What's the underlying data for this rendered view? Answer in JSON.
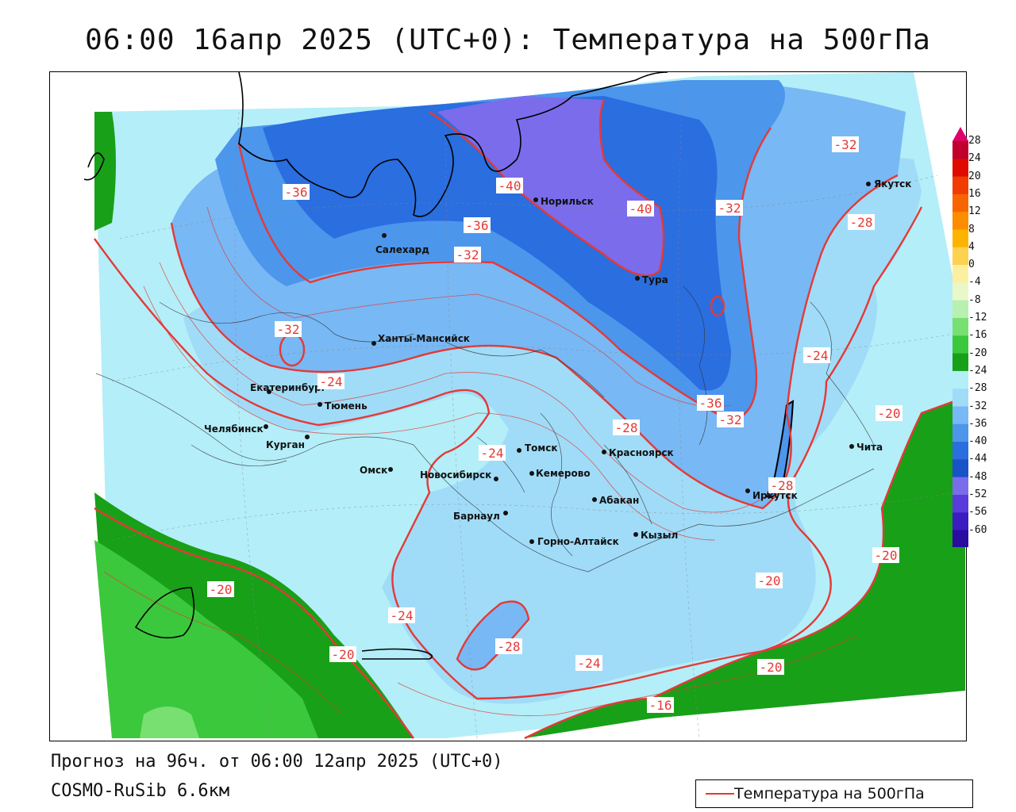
{
  "title": "06:00 16апр 2025 (UTC+0): Температура на 500гПа",
  "footer": {
    "forecast": "Прогноз на 96ч. от 06:00 12апр 2025 (UTC+0)",
    "model": "COSMO-RuSib 6.6км"
  },
  "legend": {
    "label": "Температура на 500гПа",
    "line_color": "#e53935"
  },
  "colorbar": {
    "labels": [
      "28",
      "24",
      "20",
      "16",
      "12",
      "8",
      "4",
      "0",
      "-4",
      "-8",
      "-12",
      "-16",
      "-20",
      "-24",
      "-28",
      "-32",
      "-36",
      "-40",
      "-44",
      "-48",
      "-52",
      "-56",
      "-60"
    ],
    "colors": [
      "#c0002a",
      "#e00a00",
      "#f03c00",
      "#f86400",
      "#fc8c00",
      "#fcb400",
      "#fcd250",
      "#fcf0a0",
      "#e8f8c8",
      "#b8f0b0",
      "#78e070",
      "#3cc83c",
      "#18a018",
      "#b4eef8",
      "#a0dcf8",
      "#78b8f4",
      "#4c96ec",
      "#2a6ee0",
      "#1a52c8",
      "#7b6cec",
      "#5a3cdc",
      "#3a1cc0",
      "#2a0ca0"
    ]
  },
  "cities": [
    {
      "name": "Норильск"
    },
    {
      "name": "Салехард"
    },
    {
      "name": "Тура"
    },
    {
      "name": "Якутск"
    },
    {
      "name": "Ханты-Мансийск"
    },
    {
      "name": "Екатеринбург"
    },
    {
      "name": "Тюмень"
    },
    {
      "name": "Челябинск"
    },
    {
      "name": "Курган"
    },
    {
      "name": "Омск"
    },
    {
      "name": "Томск"
    },
    {
      "name": "Новосибирск"
    },
    {
      "name": "Кемерово"
    },
    {
      "name": "Красноярск"
    },
    {
      "name": "Абакан"
    },
    {
      "name": "Барнаул"
    },
    {
      "name": "Горно-Алтайск"
    },
    {
      "name": "Кызыл"
    },
    {
      "name": "Иркутск"
    },
    {
      "name": "Чита"
    }
  ],
  "isotherm_labels": [
    "-40",
    "-40",
    "-36",
    "-36",
    "-36",
    "-32",
    "-32",
    "-32",
    "-32",
    "-32",
    "-28",
    "-28",
    "-28",
    "-28",
    "-24",
    "-24",
    "-24",
    "-24",
    "-24",
    "-20",
    "-20",
    "-20",
    "-20",
    "-20",
    "-20",
    "-16"
  ]
}
